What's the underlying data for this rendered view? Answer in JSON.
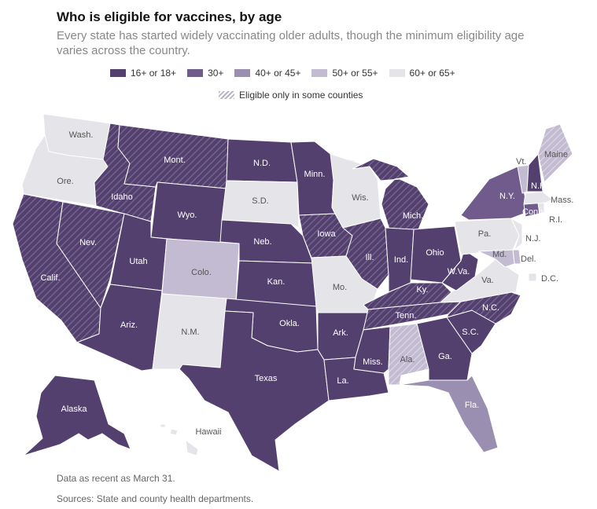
{
  "title": "Who is eligible for vaccines, by age",
  "subtitle": "Every state has started widely vaccinating older adults, though the minimum eligibility age varies across the country.",
  "legend": [
    {
      "label": "16+ or 18+",
      "color": "#54406f"
    },
    {
      "label": "30+",
      "color": "#705b8c"
    },
    {
      "label": "40+ or 45+",
      "color": "#9a8fb0"
    },
    {
      "label": "50+ or 55+",
      "color": "#c2bbd1"
    },
    {
      "label": "60+ or 65+",
      "color": "#e4e4e9"
    }
  ],
  "hatch_label": "Eligible only in some counties",
  "states": {
    "wash": {
      "label": "Wash.",
      "category": "60+ or 65+"
    },
    "ore": {
      "label": "Ore.",
      "category": "60+ or 65+"
    },
    "calif": {
      "label": "Calif.",
      "category": "16+ or 18+",
      "hatched": true
    },
    "idaho": {
      "label": "Idaho",
      "category": "16+ or 18+",
      "hatched": true
    },
    "nev": {
      "label": "Nev.",
      "category": "16+ or 18+",
      "hatched": true
    },
    "mont": {
      "label": "Mont.",
      "category": "16+ or 18+",
      "hatched": true
    },
    "wyo": {
      "label": "Wyo.",
      "category": "16+ or 18+"
    },
    "utah": {
      "label": "Utah",
      "category": "16+ or 18+"
    },
    "ariz": {
      "label": "Ariz.",
      "category": "16+ or 18+"
    },
    "colo": {
      "label": "Colo.",
      "category": "50+ or 55+"
    },
    "nm": {
      "label": "N.M.",
      "category": "60+ or 65+"
    },
    "nd": {
      "label": "N.D.",
      "category": "16+ or 18+"
    },
    "sd": {
      "label": "S.D.",
      "category": "60+ or 65+"
    },
    "neb": {
      "label": "Neb.",
      "category": "16+ or 18+"
    },
    "kan": {
      "label": "Kan.",
      "category": "16+ or 18+"
    },
    "okla": {
      "label": "Okla.",
      "category": "16+ or 18+"
    },
    "texas": {
      "label": "Texas",
      "category": "16+ or 18+"
    },
    "minn": {
      "label": "Minn.",
      "category": "16+ or 18+"
    },
    "iowa": {
      "label": "Iowa",
      "category": "16+ or 18+",
      "hatched": true
    },
    "mo": {
      "label": "Mo.",
      "category": "60+ or 65+"
    },
    "ark": {
      "label": "Ark.",
      "category": "16+ or 18+"
    },
    "la": {
      "label": "La.",
      "category": "16+ or 18+"
    },
    "wis": {
      "label": "Wis.",
      "category": "60+ or 65+"
    },
    "ill": {
      "label": "Ill.",
      "category": "16+ or 18+",
      "hatched": true
    },
    "mich": {
      "label": "Mich.",
      "category": "16+ or 18+",
      "hatched": true
    },
    "ind": {
      "label": "Ind.",
      "category": "16+ or 18+"
    },
    "ohio": {
      "label": "Ohio",
      "category": "16+ or 18+"
    },
    "ky": {
      "label": "Ky.",
      "category": "16+ or 18+",
      "hatched": true
    },
    "tenn": {
      "label": "Tenn.",
      "category": "16+ or 18+",
      "hatched": true
    },
    "miss": {
      "label": "Miss.",
      "category": "16+ or 18+"
    },
    "ala": {
      "label": "Ala.",
      "category": "50+ or 55+",
      "hatched": true
    },
    "ga": {
      "label": "Ga.",
      "category": "16+ or 18+"
    },
    "fla": {
      "label": "Fla.",
      "category": "40+ or 45+"
    },
    "sc": {
      "label": "S.C.",
      "category": "16+ or 18+"
    },
    "nc": {
      "label": "N.C.",
      "category": "16+ or 18+",
      "hatched": true
    },
    "va": {
      "label": "Va.",
      "category": "60+ or 65+"
    },
    "wva": {
      "label": "W.Va.",
      "category": "16+ or 18+"
    },
    "pa": {
      "label": "Pa.",
      "category": "60+ or 65+"
    },
    "ny": {
      "label": "N.Y.",
      "category": "30+"
    },
    "nj": {
      "label": "N.J.",
      "category": "60+ or 65+"
    },
    "del": {
      "label": "Del.",
      "category": "50+ or 55+"
    },
    "md": {
      "label": "Md.",
      "category": "50+ or 55+"
    },
    "dc": {
      "label": "D.C.",
      "category": "60+ or 65+"
    },
    "conn": {
      "label": "Conn.",
      "category": "30+"
    },
    "ri": {
      "label": "R.I.",
      "category": "60+ or 65+"
    },
    "mass": {
      "label": "Mass.",
      "category": "60+ or 65+"
    },
    "vt": {
      "label": "Vt.",
      "category": "50+ or 55+"
    },
    "nh": {
      "label": "N.H.",
      "category": "16+ or 18+"
    },
    "maine": {
      "label": "Maine",
      "category": "50+ or 55+",
      "hatched": true
    },
    "alaska": {
      "label": "Alaska",
      "category": "16+ or 18+"
    },
    "hawaii": {
      "label": "Hawaii",
      "category": "60+ or 65+"
    }
  },
  "notes": {
    "asof": "Data as recent as March 31.",
    "sources": "Sources: State and county health departments."
  }
}
